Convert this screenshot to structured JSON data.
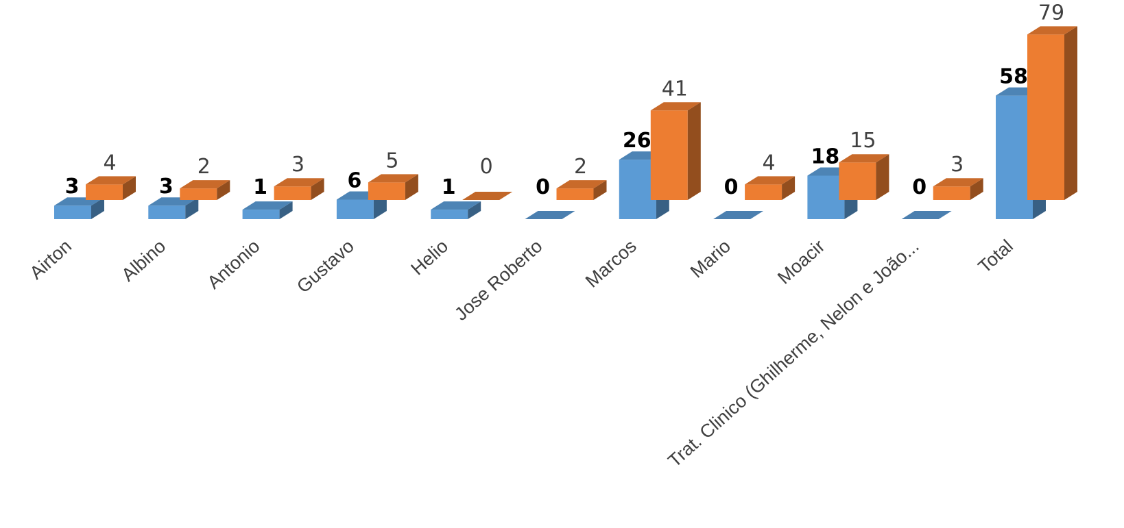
{
  "chart_data": {
    "type": "bar",
    "style": "3d-column",
    "categories": [
      "Airton",
      "Albino",
      "Antonio",
      "Gustavo",
      "Helio",
      "Jose Roberto",
      "Marcos",
      "Mario",
      "Moacir",
      "Trat. Clinico (Ghilherme, Nelon e João...",
      "Total"
    ],
    "series": [
      {
        "values": [
          3,
          3,
          1,
          6,
          1,
          0,
          26,
          0,
          18,
          0,
          58
        ],
        "color": "#5b9bd5",
        "label_weight": "bold"
      },
      {
        "values": [
          4,
          2,
          3,
          5,
          0,
          2,
          41,
          4,
          15,
          3,
          79
        ],
        "color": "#ed7d31",
        "label_weight": "normal"
      }
    ],
    "grid": false,
    "legend": "none",
    "ylim": [
      0,
      79
    ]
  }
}
